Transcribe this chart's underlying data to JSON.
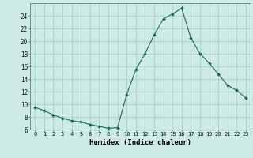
{
  "x": [
    0,
    1,
    2,
    3,
    4,
    5,
    6,
    7,
    8,
    9,
    10,
    11,
    12,
    13,
    14,
    15,
    16,
    17,
    18,
    19,
    20,
    21,
    22,
    23
  ],
  "y": [
    9.5,
    9.0,
    8.3,
    7.8,
    7.4,
    7.2,
    6.8,
    6.5,
    6.2,
    6.3,
    11.5,
    15.5,
    18.0,
    21.0,
    23.5,
    24.3,
    25.2,
    20.5,
    18.0,
    16.5,
    14.8,
    13.0,
    12.2,
    11.0
  ],
  "line_color": "#1a6b5a",
  "marker": "D",
  "marker_size": 2.0,
  "bg_color": "#ceeae6",
  "grid_color": "#aacfca",
  "xlabel": "Humidex (Indice chaleur)",
  "xlim": [
    -0.5,
    23.5
  ],
  "ylim": [
    6,
    26
  ],
  "yticks": [
    6,
    8,
    10,
    12,
    14,
    16,
    18,
    20,
    22,
    24
  ],
  "xticks": [
    0,
    1,
    2,
    3,
    4,
    5,
    6,
    7,
    8,
    9,
    10,
    11,
    12,
    13,
    14,
    15,
    16,
    17,
    18,
    19,
    20,
    21,
    22,
    23
  ]
}
